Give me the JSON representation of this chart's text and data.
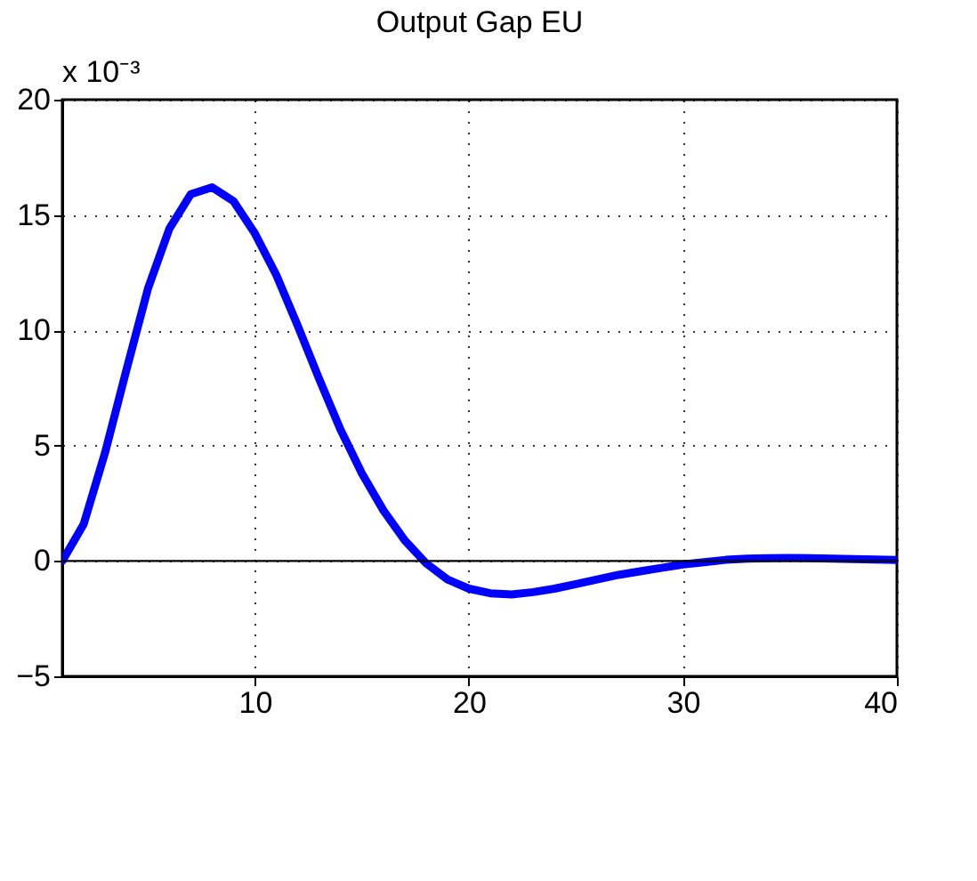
{
  "chart_data": {
    "type": "line",
    "title": "Output Gap EU",
    "annotations": [
      "x 10⁻³"
    ],
    "x": [
      1,
      2,
      3,
      4,
      5,
      6,
      7,
      8,
      9,
      10,
      11,
      12,
      13,
      14,
      15,
      16,
      17,
      18,
      19,
      20,
      21,
      22,
      23,
      24,
      25,
      26,
      27,
      28,
      29,
      30,
      31,
      32,
      33,
      34,
      35,
      36,
      37,
      38,
      39,
      40
    ],
    "series": [
      {
        "color": "#0000ff",
        "values": [
          0,
          1.6,
          4.7,
          8.3,
          11.8,
          14.4,
          15.9,
          16.2,
          15.6,
          14.2,
          12.4,
          10.2,
          7.9,
          5.7,
          3.8,
          2.2,
          0.9,
          -0.1,
          -0.8,
          -1.2,
          -1.4,
          -1.45,
          -1.35,
          -1.2,
          -1.0,
          -0.8,
          -0.6,
          -0.45,
          -0.3,
          -0.15,
          -0.05,
          0.05,
          0.1,
          0.12,
          0.13,
          0.12,
          0.1,
          0.08,
          0.06,
          0.04
        ]
      }
    ],
    "xlim": [
      1,
      40
    ],
    "xticks": [
      10,
      20,
      30,
      40
    ],
    "ylim": [
      -5,
      20
    ],
    "yticks": [
      -5,
      0,
      5,
      10,
      15,
      20
    ],
    "ref_lines": [
      {
        "axis": "y",
        "value": 0,
        "color": "#000000"
      }
    ],
    "grid": true,
    "line_style": "solid",
    "marker": "none"
  }
}
